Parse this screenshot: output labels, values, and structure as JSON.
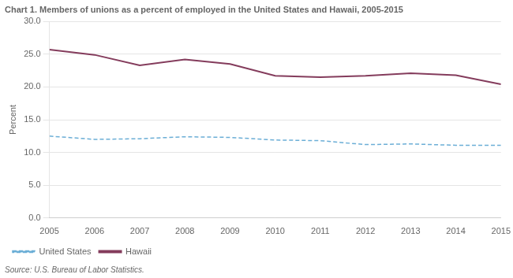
{
  "chart_data": {
    "type": "line",
    "title": "Chart 1. Members of unions as a percent of employed in the United States and Hawaii, 2005-2015",
    "ylabel": "Percent",
    "source": "Source: U.S. Bureau of Labor Statistics.",
    "x": [
      2005,
      2006,
      2007,
      2008,
      2009,
      2010,
      2011,
      2012,
      2013,
      2014,
      2015
    ],
    "series": [
      {
        "name": "United States",
        "color": "#6baed6",
        "line_style": "dashed",
        "values": [
          12.5,
          12.0,
          12.1,
          12.4,
          12.3,
          11.9,
          11.8,
          11.2,
          11.3,
          11.1,
          11.1
        ]
      },
      {
        "name": "Hawaii",
        "color": "#843c5c",
        "line_style": "solid",
        "values": [
          25.7,
          24.9,
          23.3,
          24.2,
          23.5,
          21.7,
          21.5,
          21.7,
          22.1,
          21.8,
          20.4
        ]
      }
    ],
    "xlim": [
      2005,
      2015
    ],
    "xticks": [
      2005,
      2006,
      2007,
      2008,
      2009,
      2010,
      2011,
      2012,
      2013,
      2014,
      2015
    ],
    "ylim": [
      0,
      30
    ],
    "yticks": [
      {
        "value": 0,
        "label": "0.0"
      },
      {
        "value": 5,
        "label": "5.0"
      },
      {
        "value": 10,
        "label": "10.0"
      },
      {
        "value": 15,
        "label": "15.0"
      },
      {
        "value": 20,
        "label": "20.0"
      },
      {
        "value": 25,
        "label": "25.0"
      },
      {
        "value": 30,
        "label": "30.0"
      }
    ],
    "grid": "y",
    "legend": "lower left"
  }
}
